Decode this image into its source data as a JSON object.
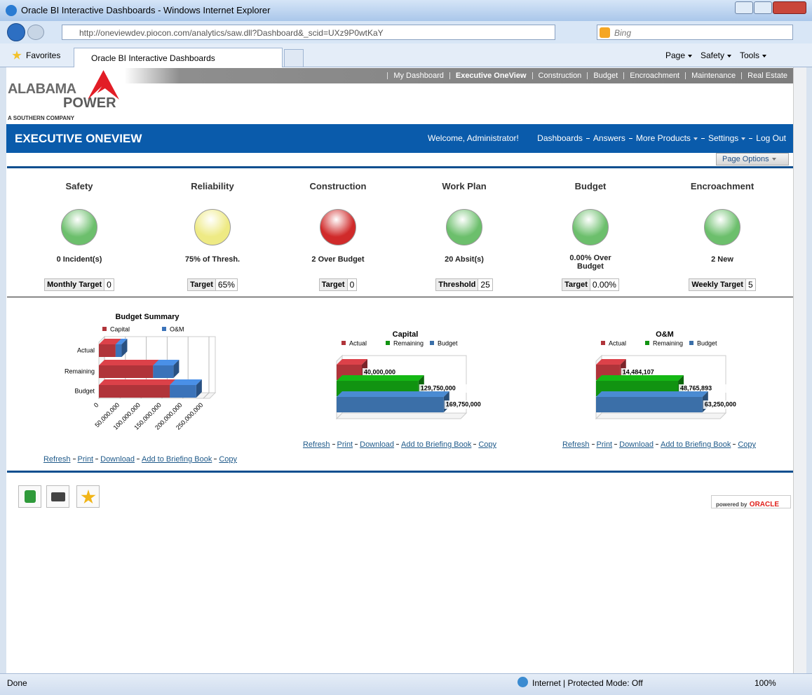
{
  "browser": {
    "title": "Oracle BI Interactive Dashboards - Windows Internet Explorer",
    "url": "http://oneviewdev.piocon.com/analytics/saw.dll?Dashboard&_scid=UXz9P0wtKaY",
    "search": "Bing",
    "favorites": "Favorites",
    "tab": "Oracle BI Interactive Dashboards",
    "menus": [
      "Page",
      "Safety",
      "Tools"
    ],
    "status": "Done",
    "zone": "Internet | Protected Mode: Off",
    "zoom": "100%"
  },
  "top_nav": [
    "My Dashboard",
    "Executive OneView",
    "Construction",
    "Budget",
    "Encroachment",
    "Maintenance",
    "Real Estate"
  ],
  "logo": {
    "line1": "ALABAMA",
    "line2": "POWER",
    "tagline": "A SOUTHERN COMPANY"
  },
  "header": {
    "title": "EXECUTIVE ONEVIEW",
    "welcome": "Welcome, Administrator!",
    "links": [
      "Dashboards",
      "Answers",
      "More Products",
      "Settings",
      "Log Out"
    ],
    "page_options": "Page Options"
  },
  "kpis": [
    {
      "title": "Safety",
      "color": "#6cbf6c",
      "status": "0 Incident(s)",
      "target_label": "Monthly Target",
      "target": "0"
    },
    {
      "title": "Reliability",
      "color": "#eeea84",
      "status": "75% of Thresh.",
      "target_label": "Target",
      "target": "65%"
    },
    {
      "title": "Construction",
      "color": "#d02a2a",
      "status": "2 Over Budget",
      "target_label": "Target",
      "target": "0"
    },
    {
      "title": "Work Plan",
      "color": "#6cbf6c",
      "status": "20 Absit(s)",
      "target_label": "Threshold",
      "target": "25"
    },
    {
      "title": "Budget",
      "color": "#6cbf6c",
      "status": "0.00% Over Budget",
      "target_label": "Target",
      "target": "0.00%"
    },
    {
      "title": "Encroachment",
      "color": "#6cbf6c",
      "status": "2 New",
      "target_label": "Weekly Target",
      "target": "5"
    }
  ],
  "report_links": [
    "Refresh",
    "Print",
    "Download",
    "Add to Briefing Book",
    "Copy"
  ],
  "footer": {
    "powered_by": "powered by",
    "brand": "ORACLE"
  },
  "chart_data": [
    {
      "type": "bar",
      "orientation": "horizontal",
      "stacked": true,
      "title": "Budget Summary",
      "categories": [
        "Actual",
        "Remaining",
        "Budget"
      ],
      "series": [
        {
          "name": "Capital",
          "color": "#b0343a",
          "values": [
            40000000,
            129750000,
            169750000
          ]
        },
        {
          "name": "O&M",
          "color": "#3b73b9",
          "values": [
            14484107,
            48765893,
            63250000
          ]
        }
      ],
      "xlim": [
        0,
        250000000
      ],
      "xticks": [
        0,
        {
          "value": 50000000,
          "label": "50,000,000"
        },
        {
          "value": 100000000,
          "label": "100,000,000"
        },
        {
          "value": 150000000,
          "label": "150,000,000"
        },
        {
          "value": 200000000,
          "label": "200,000,000"
        },
        {
          "value": 250000000,
          "label": "250,000,000"
        }
      ],
      "grid": true
    },
    {
      "type": "bar",
      "orientation": "horizontal",
      "stacked": false,
      "title": "Capital",
      "series": [
        {
          "name": "Actual",
          "color": "#b0343a",
          "values": [
            40000000
          ],
          "value_labels": [
            "40,000,000"
          ]
        },
        {
          "name": "Remaining",
          "color": "#119311",
          "values": [
            129750000
          ],
          "value_labels": [
            "129,750,000"
          ]
        },
        {
          "name": "Budget",
          "color": "#3b6fa8",
          "values": [
            169750000
          ],
          "value_labels": [
            "169,750,000"
          ]
        }
      ],
      "xlim": [
        0,
        200000000
      ]
    },
    {
      "type": "bar",
      "orientation": "horizontal",
      "stacked": false,
      "title": "O&M",
      "series": [
        {
          "name": "Actual",
          "color": "#b0343a",
          "values": [
            14484107
          ],
          "value_labels": [
            "14,484,107"
          ]
        },
        {
          "name": "Remaining",
          "color": "#119311",
          "values": [
            48765893
          ],
          "value_labels": [
            "48,765,893"
          ]
        },
        {
          "name": "Budget",
          "color": "#3b6fa8",
          "values": [
            63250000
          ],
          "value_labels": [
            "63,250,000"
          ]
        }
      ],
      "xlim": [
        0,
        75000000
      ]
    }
  ]
}
